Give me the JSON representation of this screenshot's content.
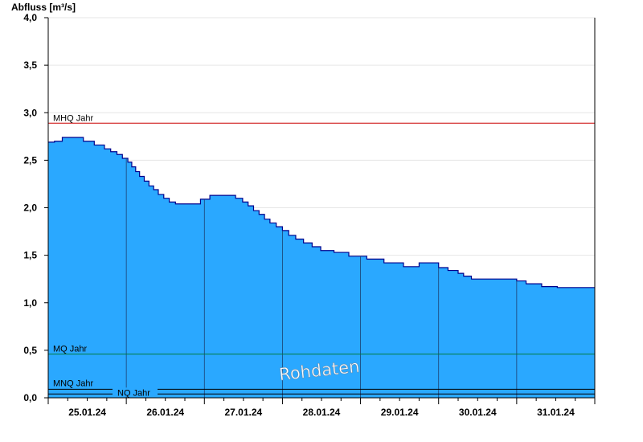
{
  "chart_data": {
    "type": "area",
    "ylabel": "Abfluss [m³/s]",
    "ylim": [
      0.0,
      4.0
    ],
    "yticks": [
      0.0,
      0.5,
      1.0,
      1.5,
      2.0,
      2.5,
      3.0,
      3.5,
      4.0
    ],
    "ytick_labels": [
      "0,0",
      "0,5",
      "1,0",
      "1,5",
      "2,0",
      "2,5",
      "3,0",
      "3,5",
      "4,0"
    ],
    "x_range_days": [
      0,
      7
    ],
    "x_day_labels": [
      "25.01.24",
      "26.01.24",
      "27.01.24",
      "28.01.24",
      "29.01.24",
      "30.01.24",
      "31.01.24"
    ],
    "grid": true,
    "fill_color": "#2aa8ff",
    "line_color": "#00008b",
    "watermark": "Rohdaten",
    "reference_lines": [
      {
        "label": "MHQ Jahr",
        "value": 2.89,
        "color": "#cc0000"
      },
      {
        "label": "MQ Jahr",
        "value": 0.46,
        "color": "#007a3d"
      },
      {
        "label": "MNQ Jahr",
        "value": 0.09,
        "color": "#000000"
      },
      {
        "label": "NQ Jahr",
        "value": 0.04,
        "color": "#000000"
      }
    ],
    "series": [
      {
        "x": [
          0.0,
          0.08,
          0.18,
          0.45,
          0.59,
          0.72,
          0.8,
          0.88,
          0.95,
          1.02,
          1.07,
          1.12,
          1.17,
          1.23,
          1.29,
          1.35,
          1.41,
          1.48,
          1.55,
          1.63,
          1.72,
          1.95,
          2.07,
          2.4,
          2.49,
          2.56,
          2.63,
          2.7,
          2.77,
          2.84,
          2.92,
          3.0,
          3.08,
          3.17,
          3.27,
          3.38,
          3.49,
          3.66,
          3.85,
          4.08,
          4.3,
          4.55,
          4.75,
          4.89,
          5.0,
          5.12,
          5.25,
          5.32,
          5.42,
          5.5,
          5.68,
          6.0,
          6.12,
          6.32,
          6.52,
          7.0
        ],
        "y": [
          2.69,
          2.7,
          2.74,
          2.7,
          2.66,
          2.62,
          2.59,
          2.56,
          2.52,
          2.48,
          2.43,
          2.38,
          2.33,
          2.28,
          2.23,
          2.19,
          2.14,
          2.1,
          2.06,
          2.04,
          2.04,
          2.09,
          2.13,
          2.1,
          2.06,
          2.02,
          1.97,
          1.93,
          1.88,
          1.84,
          1.8,
          1.76,
          1.71,
          1.67,
          1.63,
          1.59,
          1.55,
          1.53,
          1.49,
          1.46,
          1.42,
          1.38,
          1.42,
          1.42,
          1.37,
          1.34,
          1.31,
          1.28,
          1.25,
          1.25,
          1.25,
          1.23,
          1.2,
          1.17,
          1.16,
          1.16
        ]
      }
    ]
  }
}
